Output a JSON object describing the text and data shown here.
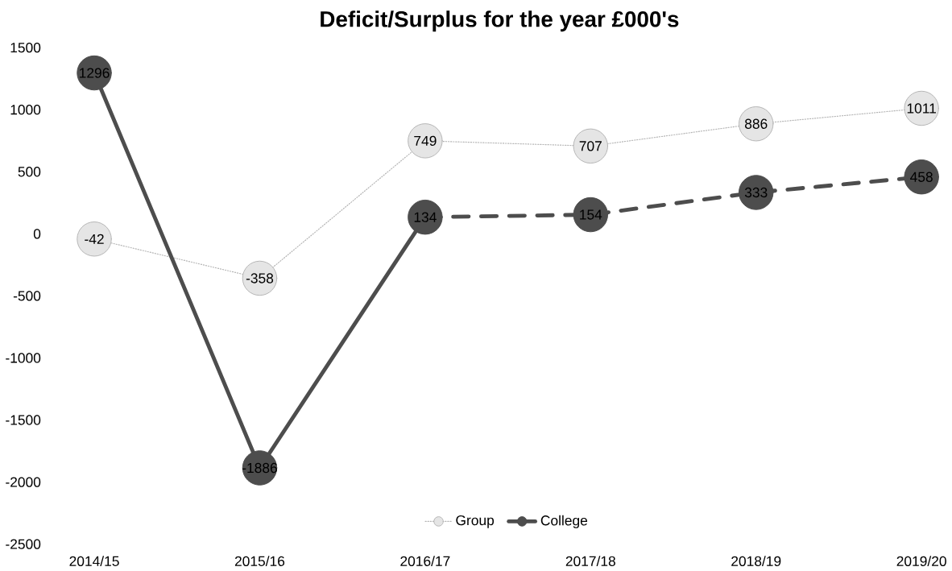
{
  "chart_data": {
    "type": "line",
    "title": "Deficit/Surplus for the year £000's",
    "categories": [
      "2014/15",
      "2015/16",
      "2016/17",
      "2017/18",
      "2018/19",
      "2019/20"
    ],
    "series": [
      {
        "name": "Group",
        "color": "#b4b4b4",
        "line_style": "dotted",
        "values": [
          -42,
          -358,
          749,
          707,
          886,
          1011
        ],
        "value_labels": [
          "-42",
          "-358",
          "749",
          "707",
          "886",
          "1011"
        ]
      },
      {
        "name": "College",
        "color": "#4d4d4d",
        "line_style": "solid",
        "values": [
          1296,
          -1886,
          134,
          null,
          null,
          null
        ],
        "value_labels": [
          "1296",
          "-1886",
          "134",
          null,
          null,
          null
        ]
      },
      {
        "color": "#4d4d4d",
        "line_style": "dashed",
        "values": [
          null,
          null,
          134,
          154,
          333,
          458
        ],
        "value_labels": [
          null,
          null,
          null,
          "154",
          "333",
          "458"
        ]
      }
    ],
    "ylim": [
      -2500,
      1500
    ],
    "yticks": [
      -2500,
      -2000,
      -1500,
      -1000,
      -500,
      0,
      500,
      1000,
      1500
    ],
    "marker": "circle",
    "grid": false,
    "legend": "bottom"
  }
}
